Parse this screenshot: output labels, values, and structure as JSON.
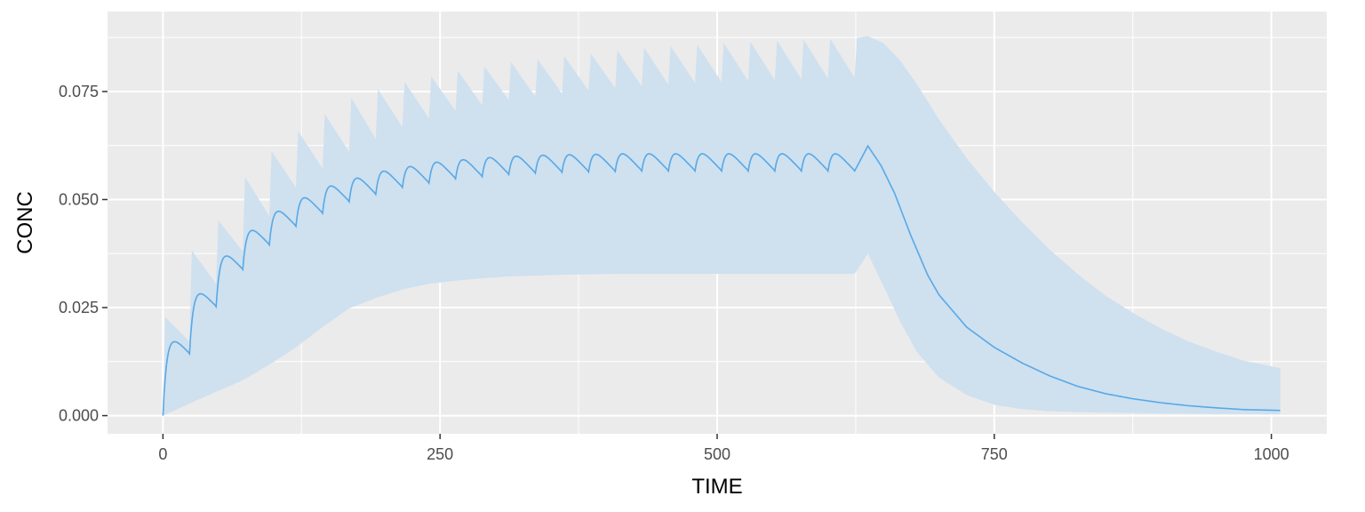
{
  "chart_data": {
    "type": "line",
    "title": "",
    "xlabel": "TIME",
    "ylabel": "CONC",
    "xlim": [
      -50,
      1050
    ],
    "ylim": [
      -0.0042,
      0.0935
    ],
    "x_ticks": [
      0,
      250,
      500,
      750,
      1000
    ],
    "x_tick_labels": [
      "0",
      "250",
      "500",
      "750",
      "1000"
    ],
    "y_ticks": [
      0.0,
      0.025,
      0.05,
      0.075
    ],
    "y_tick_labels": [
      "0.000",
      "0.025",
      "0.050",
      "0.075"
    ],
    "grid": true,
    "legend": "none",
    "dosing": {
      "interval": 24,
      "doses": 27,
      "last_dose_time": 624,
      "end_time": 1008
    },
    "series": [
      {
        "role": "median",
        "color": "#56a9e8",
        "points": [
          [
            0,
            0.0
          ],
          [
            4,
            0.0085
          ],
          [
            8,
            0.0115
          ],
          [
            12,
            0.013
          ],
          [
            18,
            0.0141
          ],
          [
            24,
            0.0143
          ],
          [
            48,
            0.0252
          ],
          [
            72,
            0.0338
          ],
          [
            96,
            0.0395
          ],
          [
            120,
            0.0438
          ],
          [
            144,
            0.0468
          ],
          [
            168,
            0.0495
          ],
          [
            192,
            0.0512
          ],
          [
            216,
            0.0528
          ],
          [
            240,
            0.0538
          ],
          [
            264,
            0.0548
          ],
          [
            288,
            0.0553
          ],
          [
            312,
            0.0558
          ],
          [
            336,
            0.0561
          ],
          [
            360,
            0.0563
          ],
          [
            384,
            0.0564
          ],
          [
            408,
            0.0565
          ],
          [
            432,
            0.0566
          ],
          [
            456,
            0.0566
          ],
          [
            480,
            0.0566
          ],
          [
            504,
            0.0566
          ],
          [
            528,
            0.0566
          ],
          [
            552,
            0.0566
          ],
          [
            576,
            0.0566
          ],
          [
            600,
            0.0566
          ],
          [
            624,
            0.0566
          ],
          [
            636,
            0.0624
          ],
          [
            648,
            0.0578
          ],
          [
            660,
            0.0515
          ],
          [
            675,
            0.0415
          ],
          [
            690,
            0.0325
          ],
          [
            700,
            0.028
          ],
          [
            725,
            0.0205
          ],
          [
            750,
            0.0158
          ],
          [
            775,
            0.0122
          ],
          [
            800,
            0.0092
          ],
          [
            825,
            0.0068
          ],
          [
            850,
            0.0051
          ],
          [
            875,
            0.0039
          ],
          [
            900,
            0.003
          ],
          [
            925,
            0.0023
          ],
          [
            950,
            0.0018
          ],
          [
            975,
            0.0014
          ],
          [
            1008,
            0.0012
          ]
        ]
      },
      {
        "role": "upper-band",
        "color": "#cfe0ef",
        "points": [
          [
            0,
            0.0
          ],
          [
            2,
            0.0228
          ],
          [
            24,
            0.0172
          ],
          [
            26,
            0.0382
          ],
          [
            48,
            0.0305
          ],
          [
            50,
            0.0452
          ],
          [
            72,
            0.038
          ],
          [
            74,
            0.0552
          ],
          [
            96,
            0.0462
          ],
          [
            98,
            0.0612
          ],
          [
            120,
            0.0528
          ],
          [
            122,
            0.0658
          ],
          [
            144,
            0.0572
          ],
          [
            146,
            0.0698
          ],
          [
            168,
            0.061
          ],
          [
            170,
            0.0735
          ],
          [
            192,
            0.064
          ],
          [
            194,
            0.0755
          ],
          [
            216,
            0.0668
          ],
          [
            218,
            0.0772
          ],
          [
            240,
            0.0688
          ],
          [
            242,
            0.0785
          ],
          [
            264,
            0.0705
          ],
          [
            266,
            0.0798
          ],
          [
            288,
            0.0718
          ],
          [
            290,
            0.0808
          ],
          [
            312,
            0.073
          ],
          [
            314,
            0.0818
          ],
          [
            336,
            0.0738
          ],
          [
            338,
            0.0825
          ],
          [
            360,
            0.0745
          ],
          [
            362,
            0.0832
          ],
          [
            384,
            0.0752
          ],
          [
            386,
            0.0838
          ],
          [
            408,
            0.0758
          ],
          [
            410,
            0.0845
          ],
          [
            432,
            0.0762
          ],
          [
            434,
            0.0852
          ],
          [
            456,
            0.0766
          ],
          [
            458,
            0.0855
          ],
          [
            480,
            0.077
          ],
          [
            482,
            0.0858
          ],
          [
            504,
            0.0772
          ],
          [
            506,
            0.0862
          ],
          [
            528,
            0.0774
          ],
          [
            530,
            0.0865
          ],
          [
            552,
            0.0776
          ],
          [
            554,
            0.0868
          ],
          [
            576,
            0.0778
          ],
          [
            578,
            0.087
          ],
          [
            600,
            0.078
          ],
          [
            602,
            0.0872
          ],
          [
            624,
            0.0782
          ],
          [
            626,
            0.0874
          ],
          [
            636,
            0.0878
          ],
          [
            650,
            0.0862
          ],
          [
            665,
            0.0822
          ],
          [
            680,
            0.0768
          ],
          [
            700,
            0.0686
          ],
          [
            725,
            0.0596
          ],
          [
            750,
            0.0518
          ],
          [
            775,
            0.0448
          ],
          [
            800,
            0.0384
          ],
          [
            825,
            0.0328
          ],
          [
            850,
            0.0278
          ],
          [
            875,
            0.0238
          ],
          [
            900,
            0.0202
          ],
          [
            925,
            0.0172
          ],
          [
            950,
            0.0148
          ],
          [
            975,
            0.0127
          ],
          [
            1008,
            0.011
          ]
        ]
      },
      {
        "role": "lower-band",
        "color": "#cfe0ef",
        "points": [
          [
            0,
            0.0
          ],
          [
            24,
            0.0028
          ],
          [
            48,
            0.0055
          ],
          [
            72,
            0.0082
          ],
          [
            96,
            0.0118
          ],
          [
            120,
            0.0158
          ],
          [
            144,
            0.0205
          ],
          [
            168,
            0.0248
          ],
          [
            192,
            0.0272
          ],
          [
            216,
            0.0292
          ],
          [
            240,
            0.0305
          ],
          [
            264,
            0.0312
          ],
          [
            288,
            0.0318
          ],
          [
            312,
            0.0322
          ],
          [
            336,
            0.0324
          ],
          [
            360,
            0.0326
          ],
          [
            384,
            0.0327
          ],
          [
            408,
            0.0328
          ],
          [
            432,
            0.0328
          ],
          [
            456,
            0.0328
          ],
          [
            480,
            0.0328
          ],
          [
            504,
            0.0328
          ],
          [
            528,
            0.0328
          ],
          [
            552,
            0.0328
          ],
          [
            576,
            0.0328
          ],
          [
            600,
            0.0328
          ],
          [
            624,
            0.0328
          ],
          [
            636,
            0.0375
          ],
          [
            650,
            0.03
          ],
          [
            665,
            0.0218
          ],
          [
            680,
            0.0148
          ],
          [
            700,
            0.0088
          ],
          [
            725,
            0.0048
          ],
          [
            750,
            0.0025
          ],
          [
            775,
            0.0015
          ],
          [
            800,
            0.001
          ],
          [
            850,
            0.0007
          ],
          [
            900,
            0.0005
          ],
          [
            950,
            0.0004
          ],
          [
            1008,
            0.0003
          ]
        ]
      }
    ]
  }
}
